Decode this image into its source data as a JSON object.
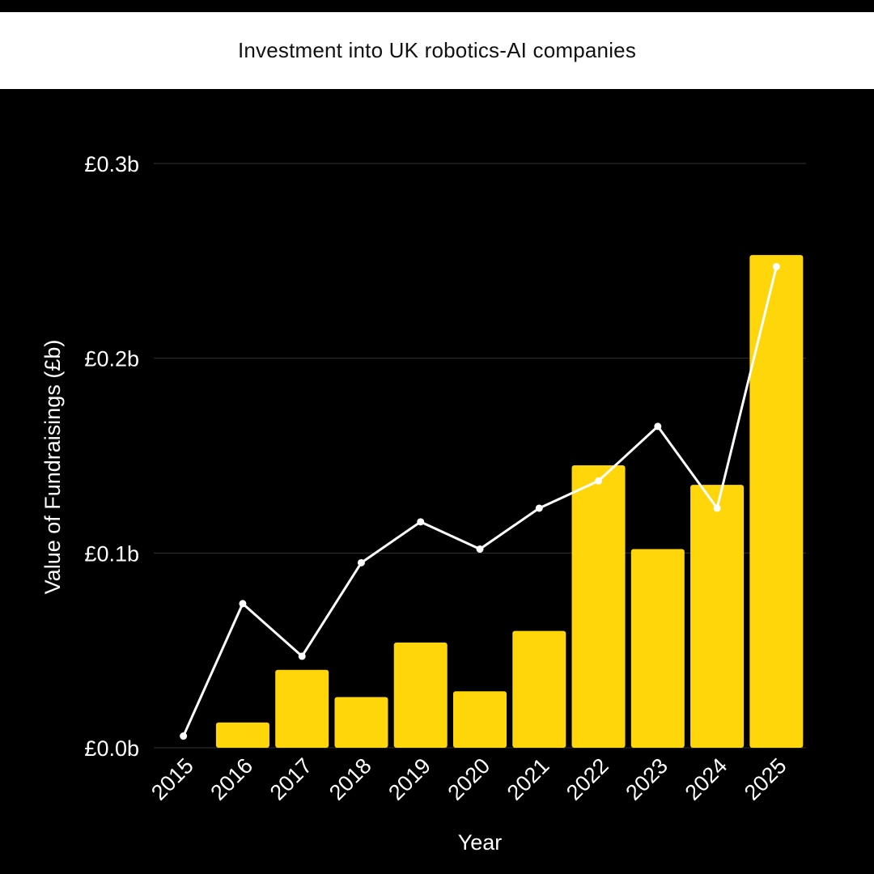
{
  "colors": {
    "background": "#000000",
    "title_bar": "#ffffff",
    "title_text": "#111111",
    "bar": "#FFD60A",
    "line": "#ffffff",
    "grid": "#333333",
    "text": "#ffffff"
  },
  "chart_data": {
    "type": "bar",
    "title": "Investment into UK robotics-AI companies",
    "xlabel": "Year",
    "ylabel": "Value of Fundraisings (£b)",
    "categories": [
      "2015",
      "2016",
      "2017",
      "2018",
      "2019",
      "2020",
      "2021",
      "2022",
      "2023",
      "2024",
      "2025"
    ],
    "ylim": [
      0,
      0.3
    ],
    "yticks": [
      0.0,
      0.1,
      0.2,
      0.3
    ],
    "ytick_labels": [
      "£0.0b",
      "£0.1b",
      "£0.2b",
      "£0.3b"
    ],
    "grid": true,
    "legend": "none",
    "series": [
      {
        "type": "bar",
        "values": [
          0.0,
          0.013,
          0.04,
          0.026,
          0.054,
          0.029,
          0.06,
          0.145,
          0.102,
          0.135,
          0.253
        ]
      },
      {
        "type": "line",
        "values": [
          0.006,
          0.074,
          0.047,
          0.095,
          0.116,
          0.102,
          0.123,
          0.137,
          0.165,
          0.123,
          0.247
        ]
      }
    ]
  }
}
